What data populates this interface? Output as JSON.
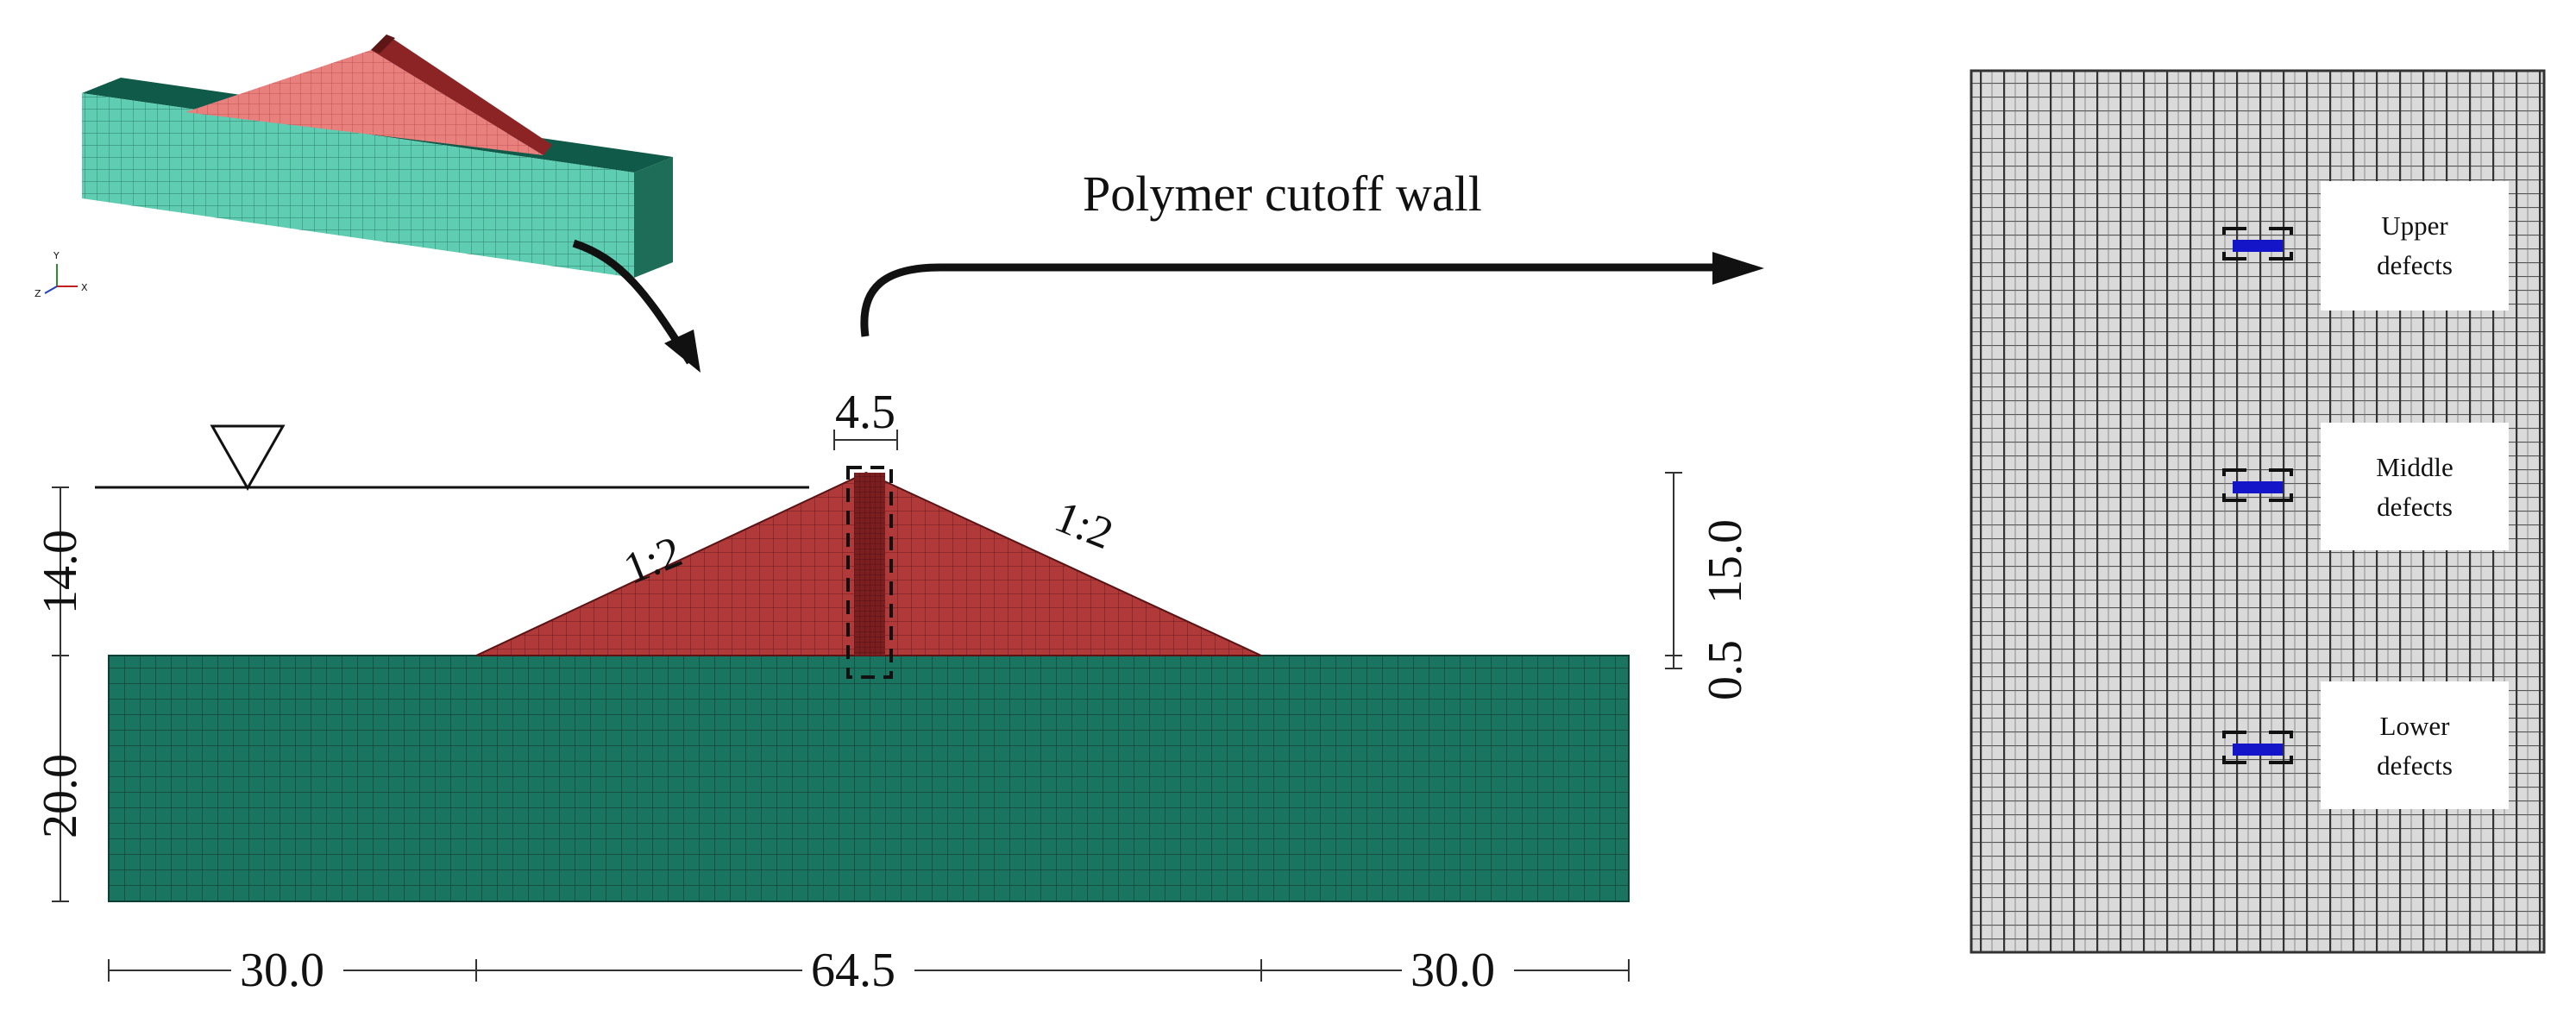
{
  "figure": {
    "title_label": "Polymer cutoff wall",
    "slope_left": "1:2",
    "slope_right": "1:2",
    "dim_crest_width": "4.5",
    "dim_height_left": "14.0",
    "dim_foundation_depth": "20.0",
    "dim_height_right": "15.0",
    "dim_freeboard": "0.5",
    "dim_bottom_left": "30.0",
    "dim_bottom_middle": "64.5",
    "dim_bottom_right": "30.0",
    "defects": [
      {
        "line1": "Upper",
        "line2": "defects"
      },
      {
        "line1": "Middle",
        "line2": "defects"
      },
      {
        "line1": "Lower",
        "line2": "defects"
      }
    ],
    "axis_labels": {
      "y": "Y",
      "z": "Z",
      "x": "X"
    },
    "colors": {
      "dam": "#b0393a",
      "dam_side": "#7e2224",
      "foundation": "#1a7560",
      "foundation_3d": "#5fcdb2",
      "wall": "#d5d5d5",
      "defect": "#1414c8",
      "ink": "#111111"
    }
  }
}
